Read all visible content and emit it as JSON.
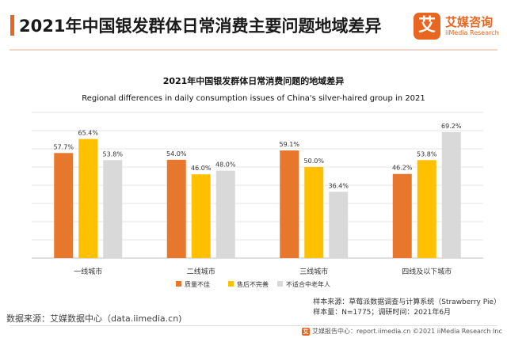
{
  "page": {
    "title": "2021年中国银发群体日常消费主要问题地域差异"
  },
  "brand": {
    "logo_char": "艾",
    "name": "艾媒咨询",
    "sub": "iiMedia Research",
    "color": "#e8661f"
  },
  "chart_data": {
    "type": "bar",
    "title": "2021年中国银发群体日常消费问题的地域差异",
    "subtitle": "Regional differences in daily consumption issues of China's silver-haired group in 2021",
    "categories": [
      "一线城市",
      "二线城市",
      "三线城市",
      "四线及以下城市"
    ],
    "series": [
      {
        "name": "质量不佳",
        "color": "#e8772e",
        "values": [
          57.7,
          54.0,
          59.1,
          46.2
        ]
      },
      {
        "name": "售后不完善",
        "color": "#ffc000",
        "values": [
          65.4,
          46.0,
          50.0,
          53.8
        ]
      },
      {
        "name": "不适合中老年人",
        "color": "#d9d9d9",
        "values": [
          53.8,
          48.0,
          36.4,
          69.2
        ]
      }
    ],
    "value_suffix": "%",
    "ylim": [
      0,
      80
    ],
    "grid": true,
    "legend": "bottom"
  },
  "footer": {
    "source": "数据来源：艾媒数据中心（data.iimedia.cn)",
    "sample_source": "样本来源：草莓派数据调查与计算系统（Strawberry Pie）",
    "sample_size": "样本量：N=1775；调研时间：2021年6月",
    "copyright": "艾媒报告中心：report.iimedia.cn    ©2021  iiMedia Research  Inc"
  }
}
